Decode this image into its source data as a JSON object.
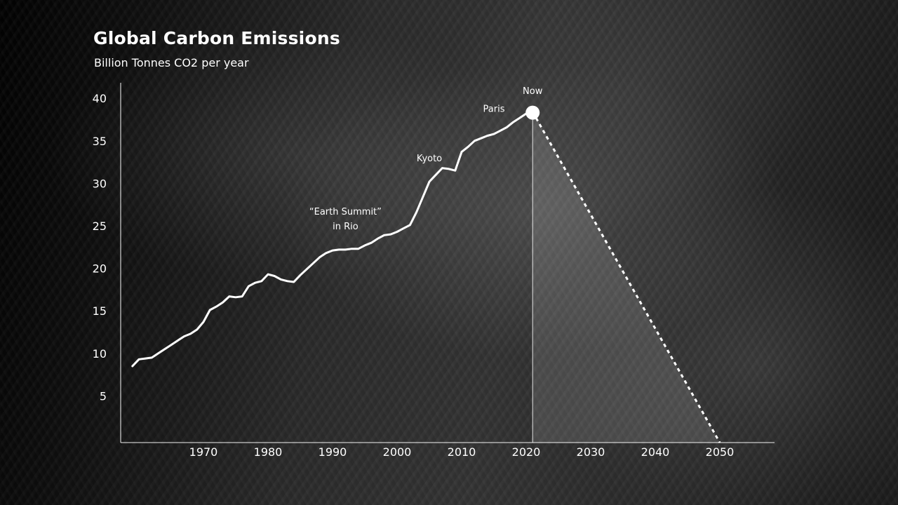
{
  "chart_data": {
    "type": "line",
    "title": "Global Carbon Emissions",
    "subtitle": "Billion Tonnes CO2 per year",
    "xlabel": "",
    "ylabel": "",
    "xlim": [
      1958,
      2059
    ],
    "ylim": [
      0,
      42
    ],
    "x_ticks": [
      "1970",
      "1980",
      "1990",
      "2000",
      "2010",
      "2020",
      "2030",
      "2040",
      "2050"
    ],
    "y_ticks": [
      "5",
      "10",
      "15",
      "20",
      "25",
      "30",
      "35",
      "40"
    ],
    "grid": false,
    "legend": "none",
    "series": [
      {
        "x": [
          1959,
          1960,
          1961,
          1962,
          1963,
          1964,
          1965,
          1966,
          1967,
          1968,
          1969,
          1970,
          1971,
          1972,
          1973,
          1974,
          1975,
          1976,
          1977,
          1978,
          1979,
          1980,
          1981,
          1982,
          1983,
          1984,
          1985,
          1986,
          1987,
          1988,
          1989,
          1990,
          1991,
          1992,
          1993,
          1994,
          1995,
          1996,
          1997,
          1998,
          1999,
          2000,
          2001,
          2002,
          2003,
          2004,
          2005,
          2006,
          2007,
          2008,
          2009,
          2010,
          2011,
          2012,
          2013,
          2014,
          2015,
          2016,
          2017,
          2018,
          2019,
          2020,
          2021
        ],
        "y": [
          8.5,
          9.3,
          9.4,
          9.5,
          10.0,
          10.5,
          11.0,
          11.5,
          12.0,
          12.3,
          12.8,
          13.7,
          15.1,
          15.5,
          16.0,
          16.7,
          16.6,
          16.7,
          17.9,
          18.3,
          18.5,
          19.3,
          19.1,
          18.7,
          18.5,
          18.4,
          19.2,
          19.9,
          20.6,
          21.3,
          21.8,
          22.1,
          22.2,
          22.2,
          22.3,
          22.3,
          22.7,
          23.0,
          23.5,
          23.9,
          24.0,
          24.3,
          24.7,
          25.1,
          26.6,
          28.4,
          30.2,
          31.0,
          31.8,
          31.7,
          31.5,
          33.7,
          34.3,
          35.0,
          35.3,
          35.6,
          35.8,
          36.2,
          36.6,
          37.2,
          37.7,
          38.2,
          38.4
        ]
      }
    ],
    "projection": {
      "from": [
        2021,
        38.4
      ],
      "to": [
        2050,
        0
      ],
      "style": "dashed"
    },
    "annotations": [
      {
        "text": "“Earth Summit”",
        "x": 1992,
        "y": 26.3
      },
      {
        "text": "in Rio",
        "x": 1992,
        "y": 24.6
      },
      {
        "text": "Kyoto",
        "x": 2005,
        "y": 32.6
      },
      {
        "text": "Paris",
        "x": 2015,
        "y": 38.4
      },
      {
        "text": "Now",
        "x": 2021,
        "y": 40.5
      }
    ],
    "marker": {
      "label": "Now",
      "x": 2021,
      "y": 38.4
    }
  }
}
